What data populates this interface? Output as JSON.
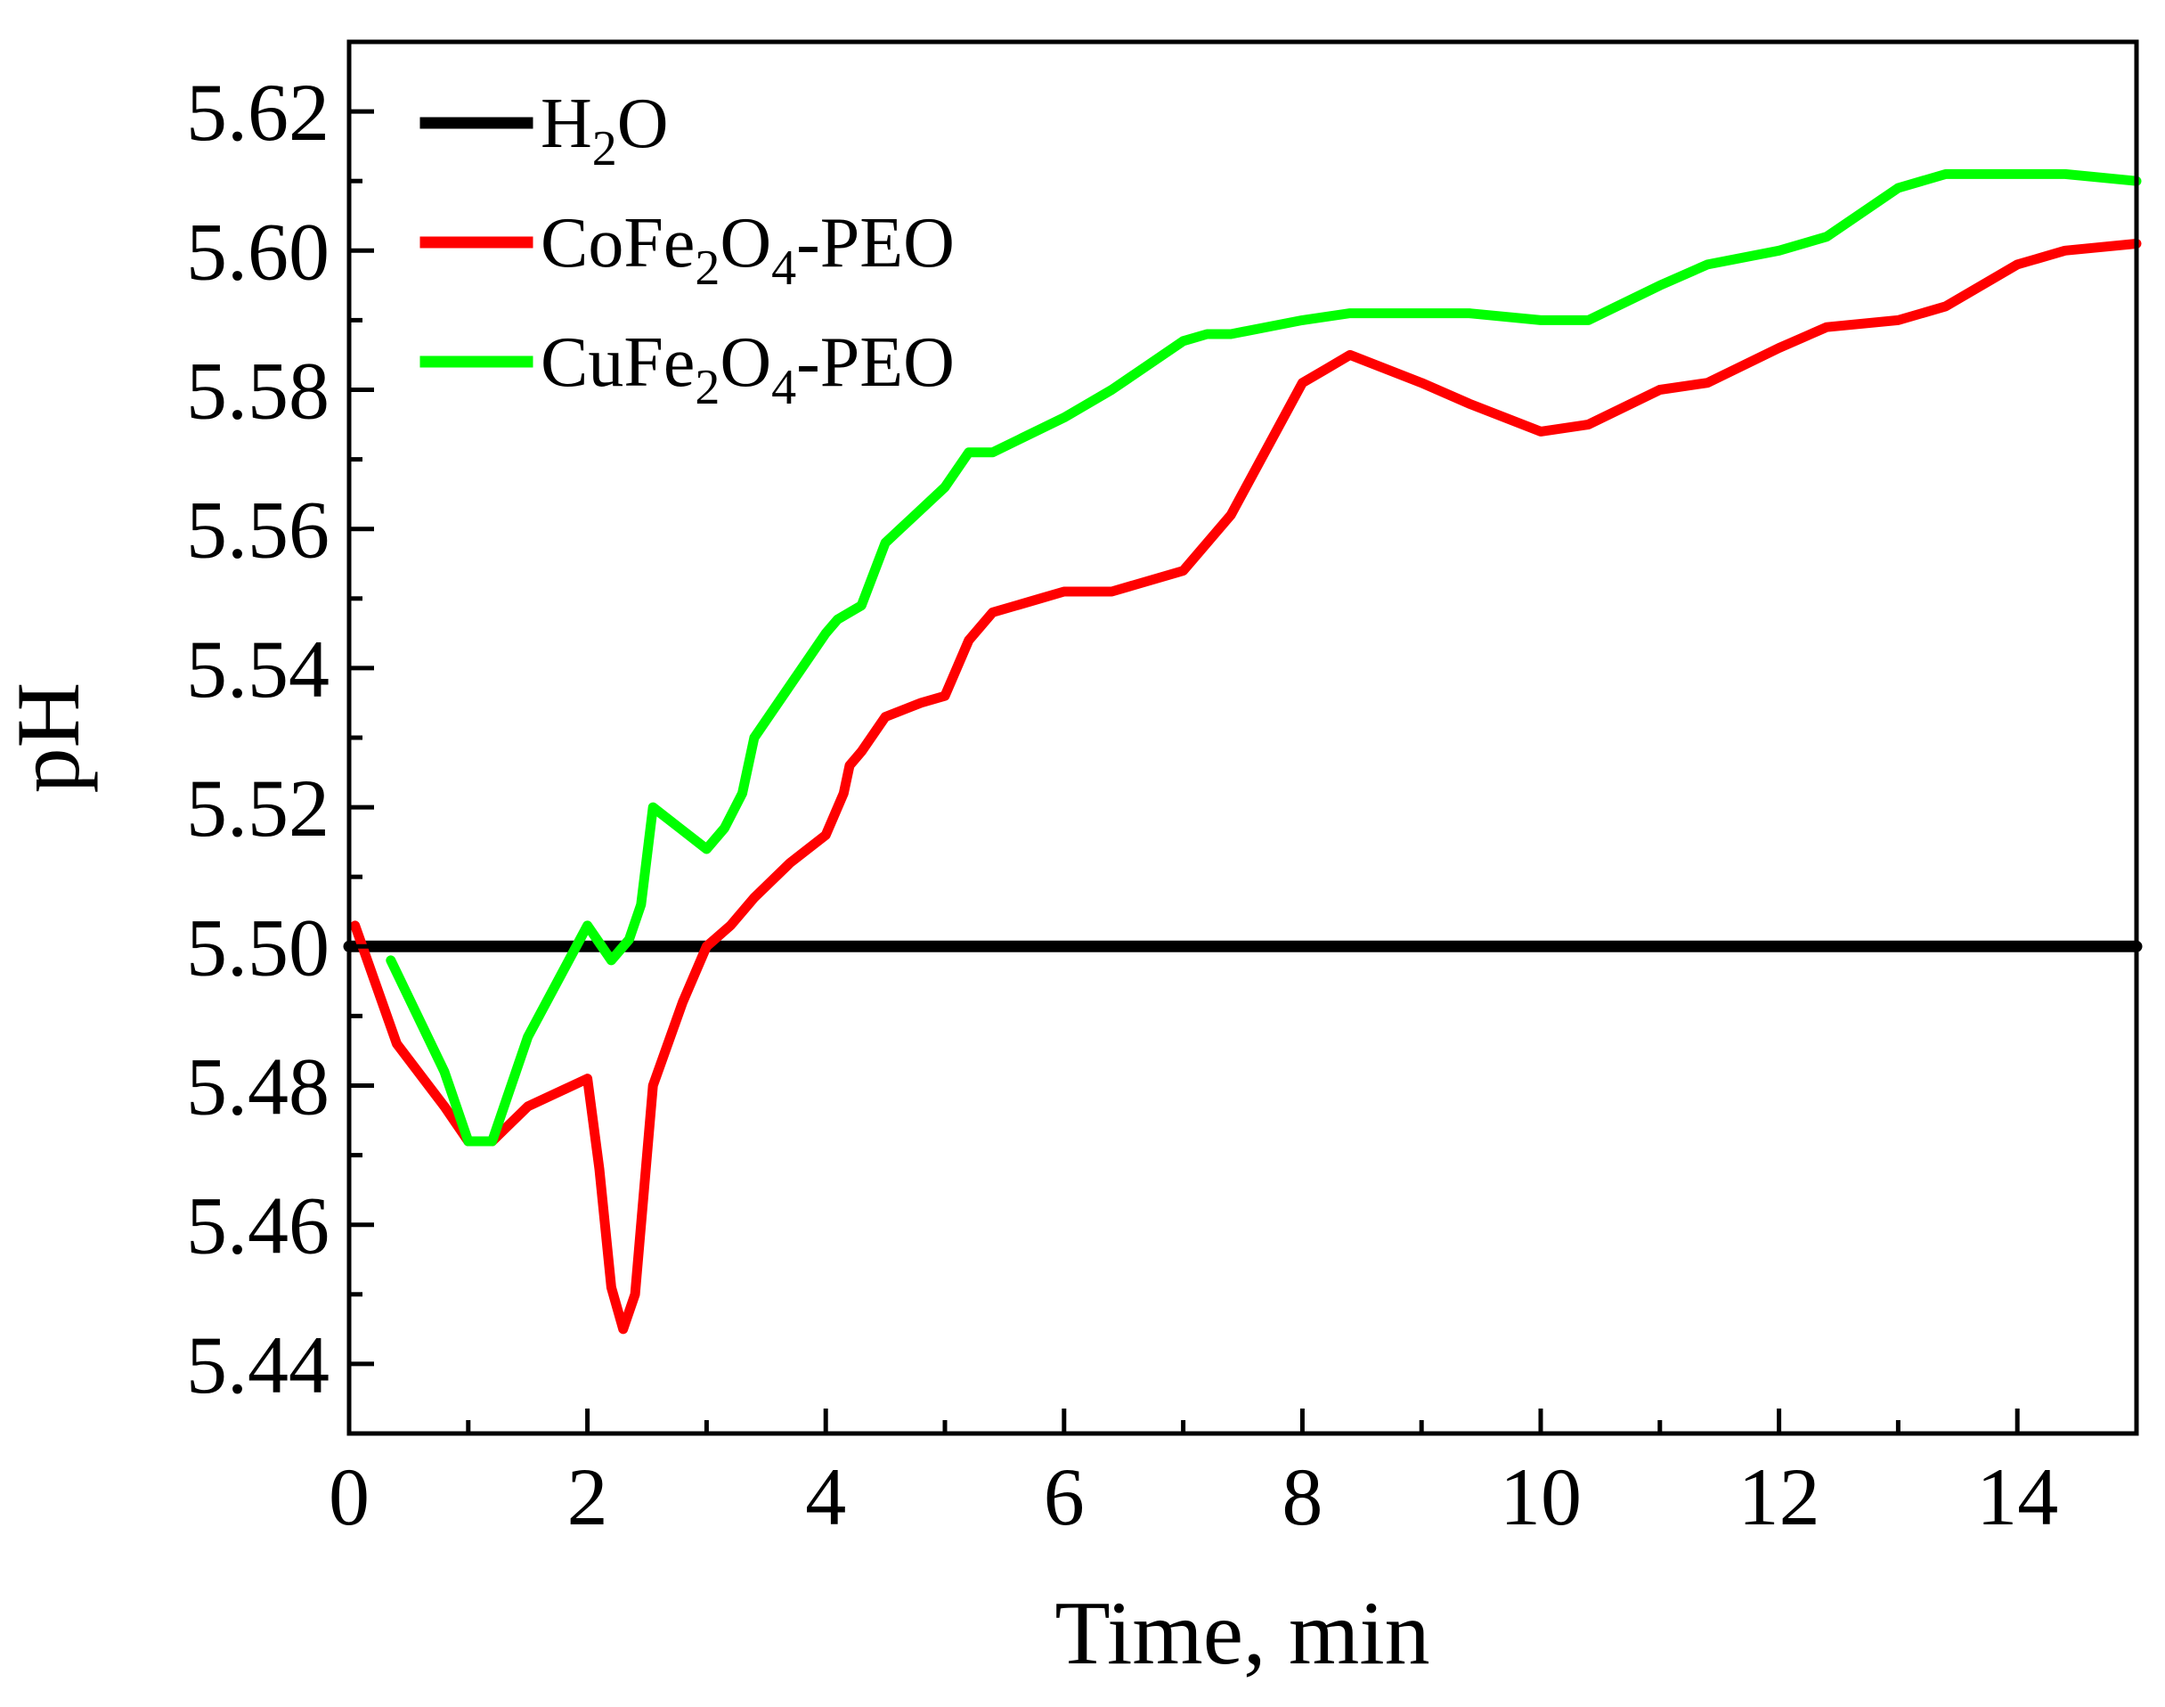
{
  "chart_data": {
    "type": "line",
    "title": "",
    "xlabel": "Time, min",
    "ylabel": "pH",
    "xlim": [
      0,
      15
    ],
    "ylim": [
      5.43,
      5.63
    ],
    "xticks": [
      0,
      2,
      4,
      6,
      8,
      10,
      12,
      14
    ],
    "xtick_labels": [
      "0",
      "2",
      "4",
      "6",
      "8",
      "10",
      "12",
      "14"
    ],
    "yticks": [
      5.44,
      5.46,
      5.48,
      5.5,
      5.52,
      5.54,
      5.56,
      5.58,
      5.6,
      5.62
    ],
    "ytick_labels": [
      "5.44",
      "5.46",
      "5.48",
      "5.50",
      "5.52",
      "5.54",
      "5.56",
      "5.58",
      "5.60",
      "5.62"
    ],
    "grid": false,
    "legend_position": "top-left",
    "series": [
      {
        "name": "H2O",
        "legend": {
          "base": "H",
          "sub": "2",
          "rest": "O"
        },
        "color": "#000000",
        "x": [
          0,
          15
        ],
        "y": [
          5.5,
          5.5
        ]
      },
      {
        "name": "CoFe2O4-PEO",
        "legend": {
          "a": "CoFe",
          "s1": "2",
          "b": "O",
          "s2": "4",
          "c": "-PEO"
        },
        "color": "#ff0000",
        "x": [
          0.05,
          0.4,
          0.8,
          1.0,
          1.2,
          1.5,
          2.0,
          2.1,
          2.2,
          2.3,
          2.4,
          2.55,
          2.8,
          3.0,
          3.2,
          3.4,
          3.7,
          4.0,
          4.15,
          4.2,
          4.3,
          4.5,
          4.8,
          5.0,
          5.2,
          5.4,
          5.8,
          6.0,
          6.4,
          7.0,
          7.4,
          8.0,
          8.2,
          8.4,
          9.0,
          9.4,
          10.0,
          10.4,
          11.0,
          11.4,
          12.0,
          12.4,
          13.0,
          13.4,
          14.0,
          14.4,
          15.0
        ],
        "y": [
          5.503,
          5.486,
          5.477,
          5.472,
          5.472,
          5.477,
          5.481,
          5.468,
          5.451,
          5.445,
          5.45,
          5.48,
          5.492,
          5.5,
          5.503,
          5.507,
          5.512,
          5.516,
          5.522,
          5.526,
          5.528,
          5.533,
          5.535,
          5.536,
          5.544,
          5.548,
          5.55,
          5.551,
          5.551,
          5.554,
          5.562,
          5.581,
          5.583,
          5.585,
          5.581,
          5.578,
          5.574,
          5.575,
          5.58,
          5.581,
          5.586,
          5.589,
          5.59,
          5.592,
          5.598,
          5.6,
          5.601
        ]
      },
      {
        "name": "CuFe2O4-PEO",
        "legend": {
          "a": "CuFe",
          "s1": "2",
          "b": "O",
          "s2": "4",
          "c": "-PEO"
        },
        "color": "#00ff00",
        "x": [
          0.35,
          0.8,
          1.0,
          1.2,
          1.5,
          2.0,
          2.2,
          2.35,
          2.45,
          2.55,
          3.0,
          3.15,
          3.3,
          3.4,
          4.0,
          4.1,
          4.2,
          4.3,
          4.5,
          5.0,
          5.2,
          5.4,
          6.0,
          6.4,
          7.0,
          7.2,
          7.4,
          8.0,
          8.4,
          9.0,
          9.4,
          10.0,
          10.4,
          11.0,
          11.4,
          12.0,
          12.4,
          13.0,
          13.4,
          14.0,
          14.4,
          15.0
        ],
        "y": [
          5.498,
          5.482,
          5.472,
          5.472,
          5.487,
          5.503,
          5.498,
          5.501,
          5.506,
          5.52,
          5.514,
          5.517,
          5.522,
          5.53,
          5.545,
          5.547,
          5.548,
          5.549,
          5.558,
          5.566,
          5.571,
          5.571,
          5.576,
          5.58,
          5.587,
          5.588,
          5.588,
          5.59,
          5.591,
          5.591,
          5.591,
          5.59,
          5.59,
          5.595,
          5.598,
          5.6,
          5.602,
          5.609,
          5.611,
          5.611,
          5.611,
          5.61
        ]
      }
    ]
  }
}
